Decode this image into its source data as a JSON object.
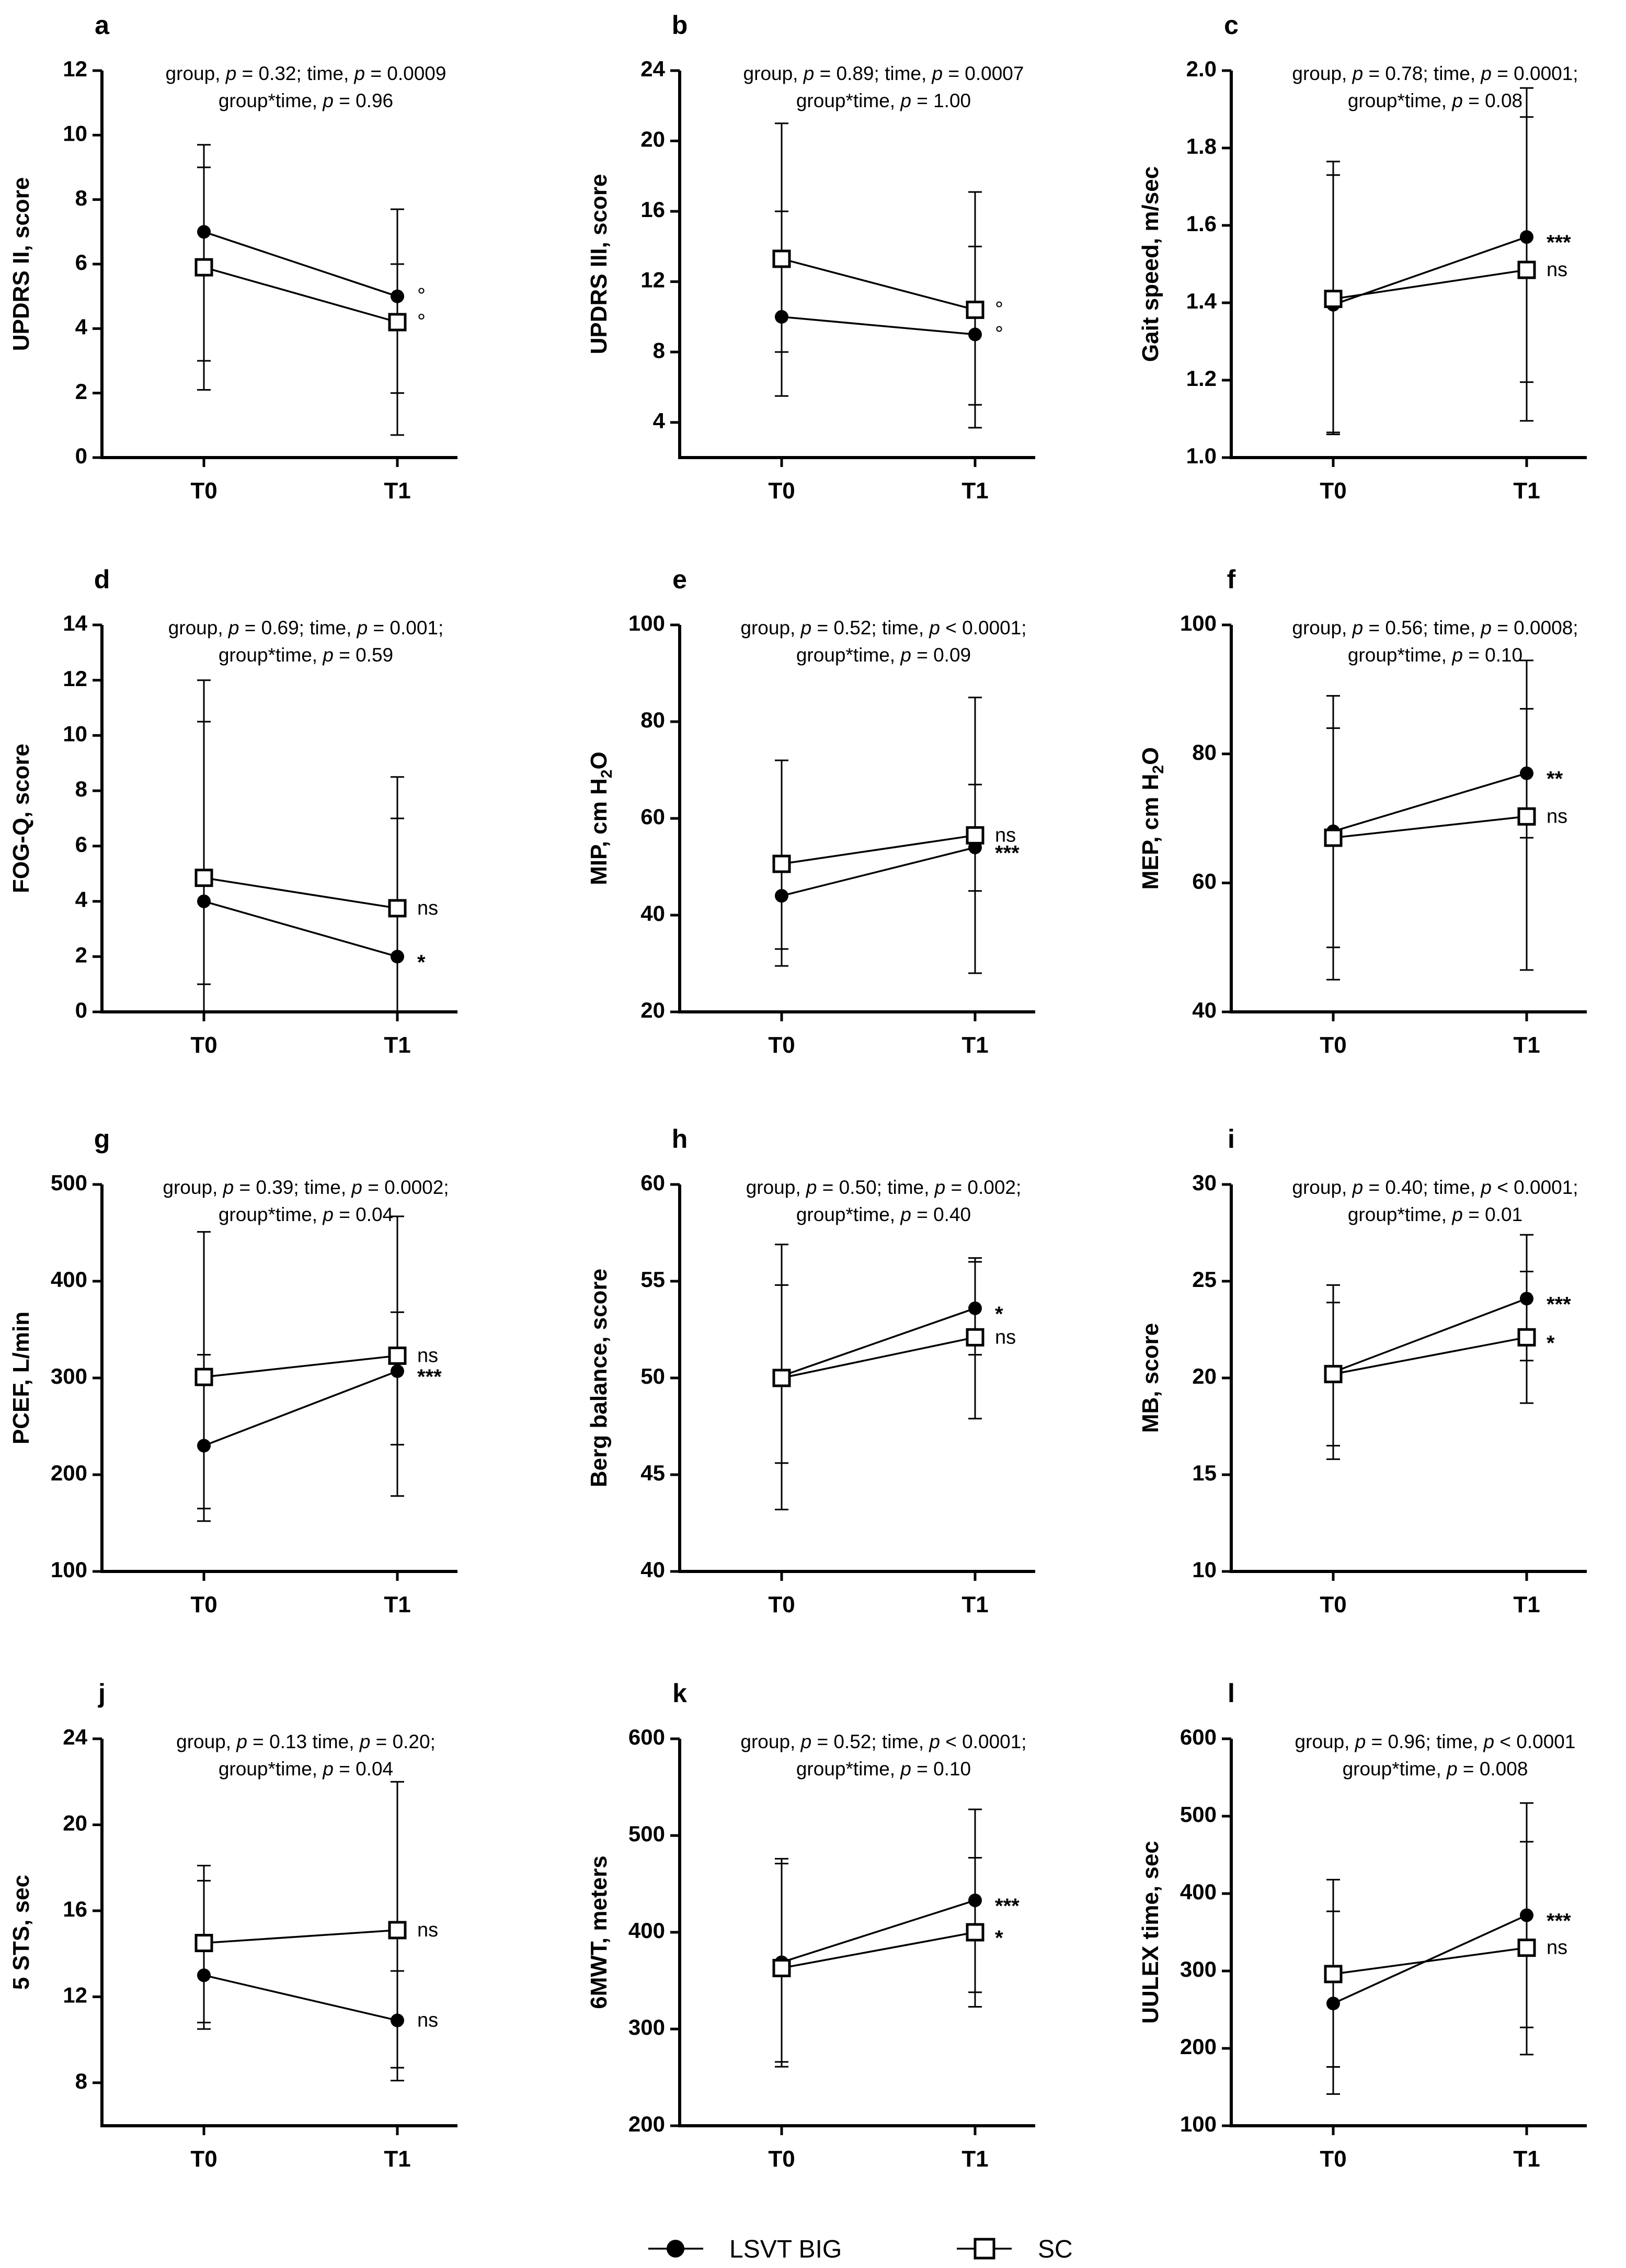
{
  "legend": {
    "lsvt_label": "LSVT BIG",
    "sc_label": "SC"
  },
  "chart_data": [
    {
      "type": "line",
      "label": "a",
      "ylabel": "UPDRS II, score",
      "stat_line1": "group, p = 0.32; time, p = 0.0009",
      "stat_line2": "group*time, p = 0.96",
      "categories": [
        "T0",
        "T1"
      ],
      "ylim": [
        0,
        12
      ],
      "yticks": [
        0,
        2,
        4,
        6,
        8,
        10,
        12
      ],
      "series": [
        {
          "name": "LSVT BIG",
          "values": [
            7.0,
            5.0
          ],
          "err_low": [
            2.1,
            2.0
          ],
          "err_high": [
            9.7,
            7.7
          ],
          "sig": "°"
        },
        {
          "name": "SC",
          "values": [
            5.9,
            4.2
          ],
          "err_low": [
            3.0,
            0.7
          ],
          "err_high": [
            9.0,
            6.0
          ],
          "sig": "°"
        }
      ]
    },
    {
      "type": "line",
      "label": "b",
      "ylabel": "UPDRS III, score",
      "stat_line1": "group, p = 0.89; time, p = 0.0007",
      "stat_line2": "group*time, p = 1.00",
      "categories": [
        "T0",
        "T1"
      ],
      "ylim": [
        2,
        24
      ],
      "yticks": [
        4,
        8,
        12,
        16,
        20,
        24
      ],
      "series": [
        {
          "name": "LSVT BIG",
          "values": [
            10.0,
            9.0
          ],
          "err_low": [
            5.5,
            3.7
          ],
          "err_high": [
            16.0,
            14.0
          ],
          "sig": "°"
        },
        {
          "name": "SC",
          "values": [
            13.3,
            10.4
          ],
          "err_low": [
            8.0,
            5.0
          ],
          "err_high": [
            21.0,
            17.1
          ],
          "sig": "°"
        }
      ]
    },
    {
      "type": "line",
      "label": "c",
      "ylabel": "Gait speed, m/sec",
      "stat_line1": "group, p = 0.78; time, p = 0.0001;",
      "stat_line2": "group*time, p = 0.08",
      "categories": [
        "T0",
        "T1"
      ],
      "ylim": [
        1.0,
        2.0
      ],
      "yticks": [
        1.0,
        1.2,
        1.4,
        1.6,
        1.8,
        2.0
      ],
      "series": [
        {
          "name": "LSVT BIG",
          "values": [
            1.395,
            1.57
          ],
          "err_low": [
            1.06,
            1.195
          ],
          "err_high": [
            1.73,
            1.955
          ],
          "sig": "***"
        },
        {
          "name": "SC",
          "values": [
            1.41,
            1.485
          ],
          "err_low": [
            1.065,
            1.095
          ],
          "err_high": [
            1.765,
            1.88
          ],
          "sig": "ns"
        }
      ]
    },
    {
      "type": "line",
      "label": "d",
      "ylabel": "FOG-Q, score",
      "stat_line1": "group, p = 0.69; time, p =  0.001;",
      "stat_line2": "group*time, p = 0.59",
      "categories": [
        "T0",
        "T1"
      ],
      "ylim": [
        0,
        14
      ],
      "yticks": [
        0,
        2,
        4,
        6,
        8,
        10,
        12,
        14
      ],
      "series": [
        {
          "name": "LSVT BIG",
          "values": [
            4.0,
            2.0
          ],
          "err_low": [
            1.0,
            0.0
          ],
          "err_high": [
            10.5,
            7.0
          ],
          "sig": "*"
        },
        {
          "name": "SC",
          "values": [
            4.85,
            3.75
          ],
          "err_low": [
            0.0,
            0.0
          ],
          "err_high": [
            12.0,
            8.5
          ],
          "sig": "ns"
        }
      ]
    },
    {
      "type": "line",
      "label": "e",
      "ylabel": "MIP, cm H₂O",
      "stat_line1": "group, p = 0.52; time, p < 0.0001;",
      "stat_line2": "group*time, p = 0.09",
      "categories": [
        "T0",
        "T1"
      ],
      "ylim": [
        20,
        100
      ],
      "yticks": [
        20,
        40,
        60,
        80,
        100
      ],
      "series": [
        {
          "name": "LSVT BIG",
          "values": [
            44.0,
            54.0
          ],
          "err_low": [
            29.5,
            28.0
          ],
          "err_high": [
            72.0,
            67.0
          ],
          "sig": "***"
        },
        {
          "name": "SC",
          "values": [
            50.6,
            56.5
          ],
          "err_low": [
            33.0,
            45.0
          ],
          "err_high": [
            72.0,
            85.0
          ],
          "sig": "ns"
        }
      ]
    },
    {
      "type": "line",
      "label": "f",
      "ylabel": "MEP, cm H₂O",
      "stat_line1": "group, p = 0.56; time, p = 0.0008;",
      "stat_line2": "group*time, p = 0.10",
      "categories": [
        "T0",
        "T1"
      ],
      "ylim": [
        40,
        100
      ],
      "yticks": [
        40,
        60,
        80,
        100
      ],
      "series": [
        {
          "name": "LSVT BIG",
          "values": [
            68.0,
            77.0
          ],
          "err_low": [
            45.0,
            67.0
          ],
          "err_high": [
            89.0,
            87.0
          ],
          "sig": "**"
        },
        {
          "name": "SC",
          "values": [
            67.0,
            70.3
          ],
          "err_low": [
            50.0,
            46.5
          ],
          "err_high": [
            84.0,
            94.5
          ],
          "sig": "ns"
        }
      ]
    },
    {
      "type": "line",
      "label": "g",
      "ylabel": "PCEF, L/min",
      "stat_line1": "group, p = 0.39; time, p = 0.0002;",
      "stat_line2": "group*time, p = 0.04",
      "categories": [
        "T0",
        "T1"
      ],
      "ylim": [
        100,
        500
      ],
      "yticks": [
        100,
        200,
        300,
        400,
        500
      ],
      "series": [
        {
          "name": "LSVT BIG",
          "values": [
            230.0,
            307.0
          ],
          "err_low": [
            152.0,
            178.0
          ],
          "err_high": [
            324.0,
            368.0
          ],
          "sig": "***"
        },
        {
          "name": "SC",
          "values": [
            301.0,
            323.0
          ],
          "err_low": [
            165.0,
            231.0
          ],
          "err_high": [
            451.0,
            467.0
          ],
          "sig": "ns"
        }
      ]
    },
    {
      "type": "line",
      "label": "h",
      "ylabel": "Berg balance, score",
      "stat_line1": "group, p = 0.50; time, p = 0.002;",
      "stat_line2": "group*time, p = 0.40",
      "categories": [
        "T0",
        "T1"
      ],
      "ylim": [
        40,
        60
      ],
      "yticks": [
        40,
        45,
        50,
        55,
        60
      ],
      "series": [
        {
          "name": "LSVT BIG",
          "values": [
            50.1,
            53.6
          ],
          "err_low": [
            43.2,
            51.2
          ],
          "err_high": [
            56.9,
            56.2
          ],
          "sig": "*"
        },
        {
          "name": "SC",
          "values": [
            50.0,
            52.1
          ],
          "err_low": [
            45.6,
            47.9
          ],
          "err_high": [
            54.8,
            56.0
          ],
          "sig": "ns"
        }
      ]
    },
    {
      "type": "line",
      "label": "i",
      "ylabel": "MB, score",
      "stat_line1": "group, p = 0.40; time, p < 0.0001;",
      "stat_line2": "group*time, p = 0.01",
      "categories": [
        "T0",
        "T1"
      ],
      "ylim": [
        10,
        30
      ],
      "yticks": [
        10,
        15,
        20,
        25,
        30
      ],
      "series": [
        {
          "name": "LSVT BIG",
          "values": [
            20.3,
            24.1
          ],
          "err_low": [
            15.8,
            20.9
          ],
          "err_high": [
            24.8,
            27.4
          ],
          "sig": "***"
        },
        {
          "name": "SC",
          "values": [
            20.2,
            22.1
          ],
          "err_low": [
            16.5,
            18.7
          ],
          "err_high": [
            23.9,
            25.5
          ],
          "sig": "*"
        }
      ]
    },
    {
      "type": "line",
      "label": "j",
      "ylabel": "5 STS, sec",
      "stat_line1": "group, p = 0.13 time, p = 0.20;",
      "stat_line2": "group*time, p = 0.04",
      "categories": [
        "T0",
        "T1"
      ],
      "ylim": [
        6,
        24
      ],
      "yticks": [
        8,
        12,
        16,
        20,
        24
      ],
      "series": [
        {
          "name": "LSVT BIG",
          "values": [
            13.0,
            10.9
          ],
          "err_low": [
            10.5,
            8.1
          ],
          "err_high": [
            17.4,
            13.2
          ],
          "sig": "ns"
        },
        {
          "name": "SC",
          "values": [
            14.5,
            15.1
          ],
          "err_low": [
            10.8,
            8.7
          ],
          "err_high": [
            18.1,
            22.0
          ],
          "sig": "ns"
        }
      ]
    },
    {
      "type": "line",
      "label": "k",
      "ylabel": "6MWT, meters",
      "stat_line1": "group, p = 0.52; time, p < 0.0001;",
      "stat_line2": "group*time, p = 0.10",
      "categories": [
        "T0",
        "T1"
      ],
      "ylim": [
        200,
        600
      ],
      "yticks": [
        200,
        300,
        400,
        500,
        600
      ],
      "series": [
        {
          "name": "LSVT BIG",
          "values": [
            369.0,
            433.0
          ],
          "err_low": [
            261.0,
            338.0
          ],
          "err_high": [
            476.0,
            527.0
          ],
          "sig": "***"
        },
        {
          "name": "SC",
          "values": [
            363.0,
            400.0
          ],
          "err_low": [
            266.0,
            323.0
          ],
          "err_high": [
            471.0,
            477.0
          ],
          "sig": "*"
        }
      ]
    },
    {
      "type": "line",
      "label": "l",
      "ylabel": "UULEX time, sec",
      "stat_line1": "group,  p = 0.96; time, p < 0.0001",
      "stat_line2": "group*time, p = 0.008",
      "categories": [
        "T0",
        "T1"
      ],
      "ylim": [
        100,
        600
      ],
      "yticks": [
        100,
        200,
        300,
        400,
        500,
        600
      ],
      "series": [
        {
          "name": "LSVT BIG",
          "values": [
            258.0,
            372.0
          ],
          "err_low": [
            141.0,
            227.0
          ],
          "err_high": [
            377.0,
            517.0
          ],
          "sig": "***"
        },
        {
          "name": "SC",
          "values": [
            296.0,
            330.0
          ],
          "err_low": [
            176.0,
            192.0
          ],
          "err_high": [
            418.0,
            467.0
          ],
          "sig": "ns"
        }
      ]
    }
  ]
}
